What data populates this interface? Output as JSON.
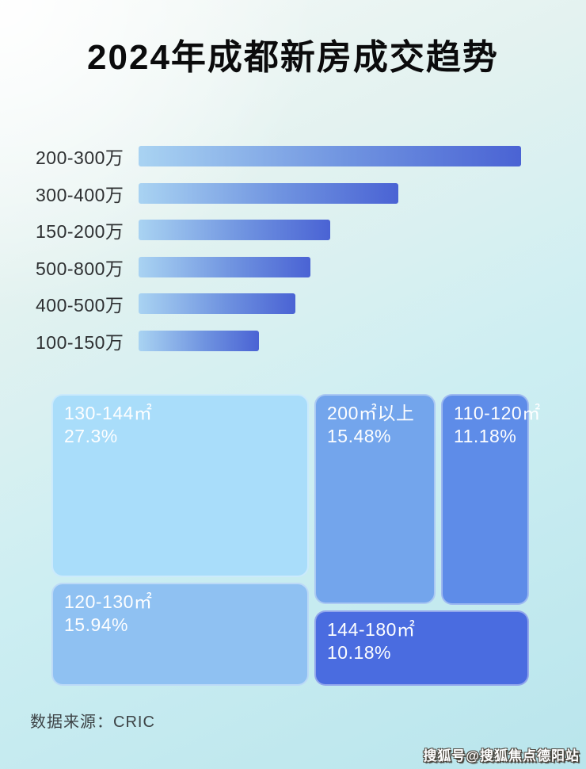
{
  "title": "2024年成都新房成交趋势",
  "colors": {
    "background_top": "#f6f9f7",
    "background_bottom": "#b9e5ec",
    "bar_gradient_start": "#a9d3f2",
    "bar_gradient_end": "#4a63d4",
    "bar_label_text": "#2d2f31",
    "tile_text": "#ffffff"
  },
  "chart_data": [
    {
      "type": "bar",
      "orientation": "horizontal",
      "title": "2024年成都新房成交趋势",
      "categories": [
        "200-300万",
        "300-400万",
        "150-200万",
        "500-800万",
        "400-500万",
        "100-150万"
      ],
      "relative_length_pct": [
        100,
        68,
        50,
        45,
        41,
        31.5
      ],
      "value_labels_shown": false,
      "grid": false,
      "bar_color_gradient": [
        "#a9d3f2",
        "#4a63d4"
      ]
    },
    {
      "type": "treemap",
      "items": [
        {
          "label": "130-144㎡",
          "percent": "27.3%",
          "value": 27.3,
          "color": "#a9ddfa"
        },
        {
          "label": "120-130㎡",
          "percent": "15.94%",
          "value": 15.94,
          "color": "#8fc1f2"
        },
        {
          "label": "200㎡以上",
          "percent": "15.48%",
          "value": 15.48,
          "color": "#73a5ec"
        },
        {
          "label": "110-120㎡",
          "percent": "11.18%",
          "value": 11.18,
          "color": "#5e8ce8"
        },
        {
          "label": "144-180㎡",
          "percent": "10.18%",
          "value": 10.18,
          "color": "#4a6ce0"
        }
      ]
    }
  ],
  "footer": {
    "source": "数据来源：CRIC",
    "watermark": "搜狐号@搜狐焦点德阳站"
  }
}
